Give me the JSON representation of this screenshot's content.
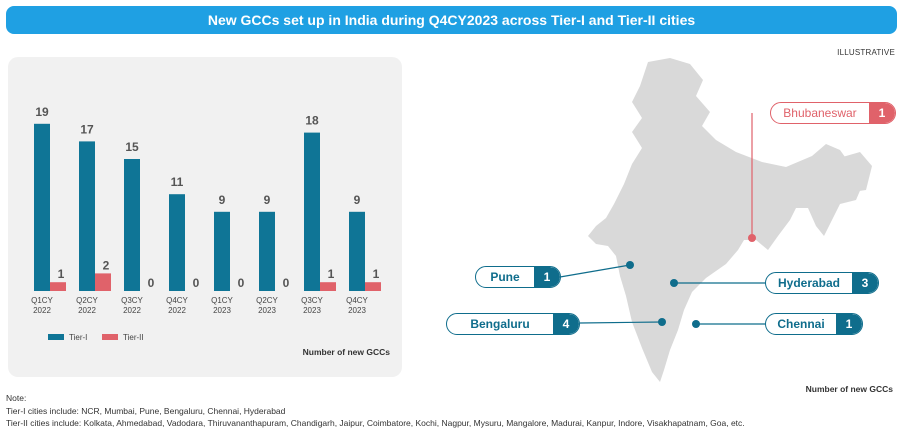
{
  "title": "New GCCs set up in India during Q4CY2023 across Tier-I and Tier-II cities",
  "illustrative_label": "ILLUSTRATIVE",
  "chart_data": {
    "type": "bar",
    "categories": [
      [
        "Q1CY",
        "2022"
      ],
      [
        "Q2CY",
        "2022"
      ],
      [
        "Q3CY",
        "2022"
      ],
      [
        "Q4CY",
        "2022"
      ],
      [
        "Q1CY",
        "2023"
      ],
      [
        "Q2CY",
        "2023"
      ],
      [
        "Q3CY",
        "2023"
      ],
      [
        "Q4CY",
        "2023"
      ]
    ],
    "series": [
      {
        "name": "Tier-I",
        "values": [
          19,
          17,
          15,
          11,
          9,
          9,
          18,
          9
        ],
        "color": "#0f7596"
      },
      {
        "name": "Tier-II",
        "values": [
          1,
          2,
          0,
          0,
          0,
          0,
          1,
          1
        ],
        "color": "#e0626a"
      }
    ],
    "ylim": [
      0,
      20
    ],
    "legend_position": "bottom-left",
    "caption": "Number of new GCCs",
    "grid": false
  },
  "map": {
    "caption": "Number of new GCCs",
    "cities": [
      {
        "name": "Bhubaneswar",
        "value": "1",
        "tier": "Tier-II",
        "color": "#e0626a"
      },
      {
        "name": "Pune",
        "value": "1",
        "tier": "Tier-I",
        "color": "#0f6d8c"
      },
      {
        "name": "Hyderabad",
        "value": "3",
        "tier": "Tier-I",
        "color": "#0f6d8c"
      },
      {
        "name": "Bengaluru",
        "value": "4",
        "tier": "Tier-I",
        "color": "#0f6d8c"
      },
      {
        "name": "Chennai",
        "value": "1",
        "tier": "Tier-I",
        "color": "#0f6d8c"
      }
    ]
  },
  "notes": {
    "heading": "Note:",
    "tier1": "Tier-I cities include: NCR, Mumbai, Pune, Bengaluru, Chennai, Hyderabad",
    "tier2": "Tier-II cities include: Kolkata, Ahmedabad, Vadodara, Thiruvananthapuram, Chandigarh, Jaipur, Coimbatore, Kochi, Nagpur, Mysuru, Mangalore, Madurai, Kanpur, Indore, Visakhapatnam, Goa, etc."
  }
}
